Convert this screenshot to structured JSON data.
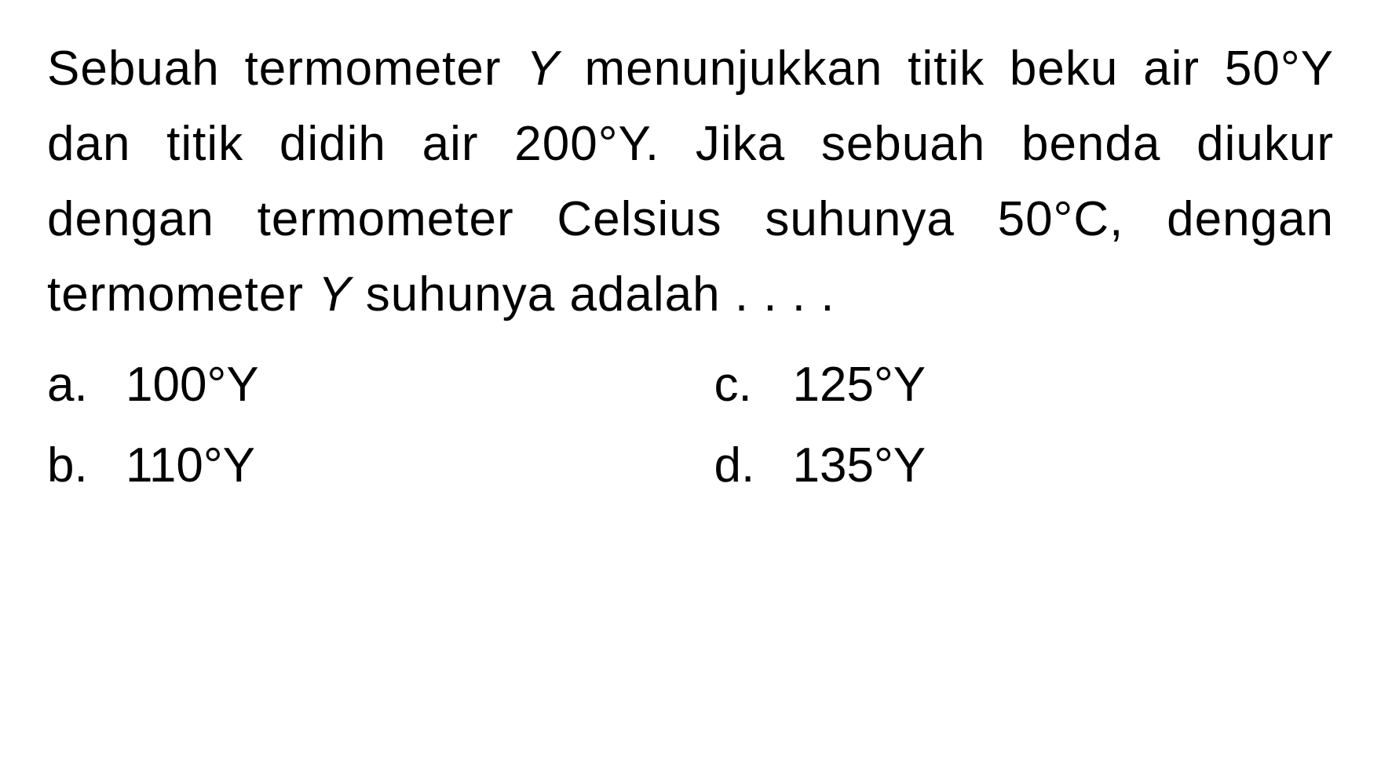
{
  "question": {
    "line1_part1": "Sebuah termometer ",
    "line1_var": "Y",
    "line1_part2": " menunjukkan",
    "line2": "titik beku air 50°Y dan titik didih air",
    "line3": "200°Y. Jika sebuah benda diukur",
    "line4": "dengan termometer Celsius suhunya",
    "line5_part1": "50°C, dengan termometer ",
    "line5_var": "Y",
    "line5_part2": " suhunya",
    "line6": "adalah . . . ."
  },
  "options": {
    "a": {
      "letter": "a.",
      "value": "100°Y"
    },
    "b": {
      "letter": "b.",
      "value": "110°Y"
    },
    "c": {
      "letter": "c.",
      "value": "125°Y"
    },
    "d": {
      "letter": "d.",
      "value": "135°Y"
    }
  },
  "styling": {
    "font_size_pt": 62,
    "line_height": 1.55,
    "text_color": "#000000",
    "background_color": "#ffffff",
    "font_family": "Arial"
  }
}
